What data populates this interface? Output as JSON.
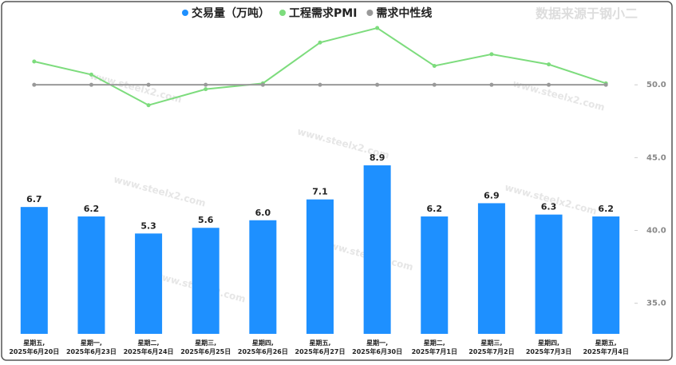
{
  "chart_data": {
    "type": "bar",
    "annotation": "数据来源于钢小二",
    "watermark": "www.steelx2.com",
    "categories": [
      "星期五,\n2025年6月20日",
      "星期一,\n2025年6月23日",
      "星期二,\n2025年6月24日",
      "星期三,\n2025年6月25日",
      "星期四,\n2025年6月26日",
      "星期五,\n2025年6月27日",
      "星期一,\n2025年6月30日",
      "星期二,\n2025年7月1日",
      "星期三,\n2025年7月2日",
      "星期四,\n2025年7月3日",
      "星期五,\n2025年7月4日"
    ],
    "series": [
      {
        "name": "交易量（万吨）",
        "type": "bar",
        "color": "#1e90ff",
        "values": [
          6.7,
          6.2,
          5.3,
          5.6,
          6.0,
          7.1,
          8.9,
          6.2,
          6.9,
          6.3,
          6.2
        ],
        "value_labels": [
          "6.7",
          "6.2",
          "5.3",
          "5.6",
          "6.0",
          "7.1",
          "8.9",
          "6.2",
          "6.9",
          "6.3",
          "6.2"
        ]
      },
      {
        "name": "工程需求PMI",
        "type": "line",
        "axis": "y2",
        "color": "#7ddc7d",
        "values": [
          51.6,
          50.7,
          48.6,
          49.7,
          50.1,
          52.9,
          53.9,
          51.3,
          52.1,
          51.4,
          50.1
        ]
      },
      {
        "name": "需求中性线",
        "type": "line",
        "axis": "y2",
        "color": "#999999",
        "values": [
          50,
          50,
          50,
          50,
          50,
          50,
          50,
          50,
          50,
          50,
          50
        ]
      }
    ],
    "ylim": [
      0,
      17
    ],
    "y2lim": [
      32.9,
      55.0
    ],
    "y2ticks": [
      {
        "value": 35,
        "label": "35.0"
      },
      {
        "value": 40,
        "label": "40.0"
      },
      {
        "value": 45,
        "label": "45.0"
      },
      {
        "value": 50,
        "label": "50.0"
      }
    ],
    "legend": "top"
  }
}
